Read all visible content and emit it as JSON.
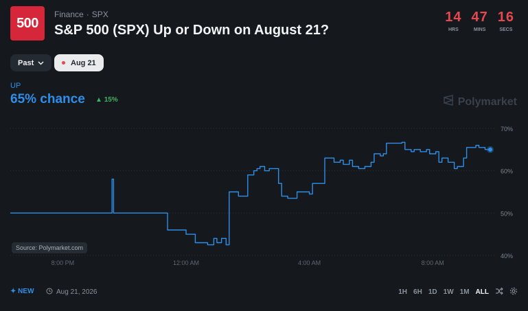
{
  "header": {
    "logo_text": "500",
    "category": "Finance",
    "ticker": "SPX",
    "title": "S&P 500 (SPX) Up or Down on August 21?"
  },
  "countdown": [
    {
      "value": "14",
      "label": "HRS"
    },
    {
      "value": "47",
      "label": "MINS"
    },
    {
      "value": "16",
      "label": "SECS"
    }
  ],
  "filters": {
    "past_label": "Past",
    "date_label": "Aug 21"
  },
  "summary": {
    "outcome": "UP",
    "chance": "65% chance",
    "delta": "15%"
  },
  "brand": "Polymarket",
  "source": "Source: Polymarket.com",
  "footer": {
    "new_label": "NEW",
    "date": "Aug 21, 2026",
    "ranges": [
      "1H",
      "6H",
      "1D",
      "1W",
      "1M",
      "ALL"
    ],
    "selected_range": "ALL"
  },
  "colors": {
    "accent": "#2f8ee8",
    "up": "#3fb25f",
    "timer": "#e5484d",
    "logo": "#d5263a"
  },
  "chart_data": {
    "type": "line",
    "x_tick_labels": [
      "8:00 PM",
      "12:00 AM",
      "4:00 AM",
      "8:00 AM"
    ],
    "x_tick_hours": [
      0,
      4,
      8,
      12
    ],
    "x_range_hours": [
      -1.7,
      14.0
    ],
    "y_ticks": [
      40,
      50,
      60,
      70
    ],
    "y_tick_labels": [
      "40%",
      "50%",
      "60%",
      "70%"
    ],
    "ylim": [
      40,
      70
    ],
    "grid": true,
    "series": [
      {
        "color": "#2f8ee8",
        "x": [
          -1.7,
          1.5,
          1.6,
          1.65,
          1.7,
          1.8,
          2.0,
          3.2,
          3.4,
          3.6,
          3.8,
          4.0,
          4.3,
          4.5,
          4.7,
          4.9,
          5.0,
          5.15,
          5.3,
          5.4,
          5.5,
          5.55,
          5.6,
          5.7,
          5.75,
          5.9,
          6.0,
          6.1,
          6.2,
          6.3,
          6.4,
          6.55,
          6.7,
          6.8,
          7.0,
          7.1,
          7.3,
          7.6,
          7.7,
          7.9,
          8.0,
          8.1,
          8.3,
          8.5,
          8.8,
          9.0,
          9.1,
          9.3,
          9.4,
          9.6,
          9.8,
          10.0,
          10.1,
          10.3,
          10.4,
          10.5,
          10.6,
          10.8,
          11.0,
          11.1,
          11.3,
          11.4,
          11.6,
          11.8,
          11.9,
          12.1,
          12.2,
          12.3,
          12.5,
          12.7,
          12.8,
          13.0,
          13.1,
          13.2,
          13.4,
          13.5,
          13.6,
          13.7,
          13.8
        ],
        "y": [
          50,
          50,
          58,
          50,
          50,
          50,
          50,
          50,
          46,
          46,
          46,
          45,
          43,
          43,
          42.5,
          44,
          43,
          44,
          42.5,
          55,
          55,
          55,
          55,
          54,
          54,
          54,
          59,
          59,
          60,
          60.5,
          61,
          60,
          60.5,
          60.5,
          57,
          54,
          53.5,
          55,
          55,
          55,
          54.5,
          57,
          57,
          63,
          62,
          62.5,
          61.5,
          62.5,
          61,
          60.5,
          61,
          62,
          64,
          63.5,
          64,
          66.5,
          66.5,
          66.5,
          66.7,
          65,
          64.5,
          65,
          64.5,
          65,
          64,
          64.5,
          62,
          63,
          62,
          60.5,
          61,
          63,
          65.5,
          65.5,
          66,
          65.5,
          65.5,
          65,
          65
        ]
      }
    ]
  }
}
